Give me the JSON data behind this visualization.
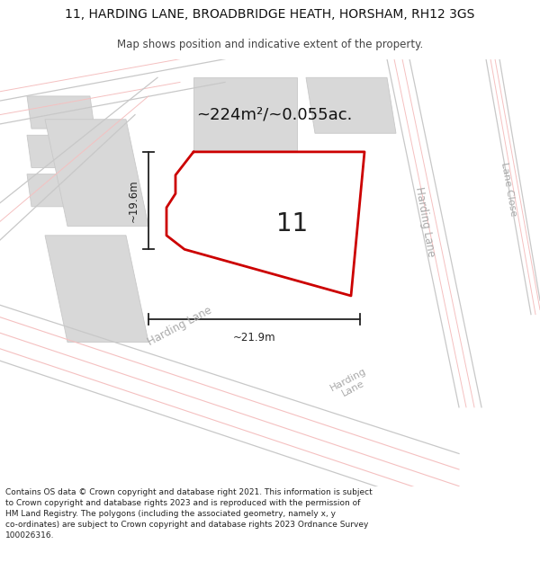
{
  "title_line1": "11, HARDING LANE, BROADBRIDGE HEATH, HORSHAM, RH12 3GS",
  "title_line2": "Map shows position and indicative extent of the property.",
  "area_label": "~224m²/~0.055ac.",
  "plot_number": "11",
  "dim_width": "~21.9m",
  "dim_height": "~19.6m",
  "footer": "Contains OS data © Crown copyright and database right 2021. This information is subject\nto Crown copyright and database rights 2023 and is reproduced with the permission of\nHM Land Registry. The polygons (including the associated geometry, namely x, y\nco-ordinates) are subject to Crown copyright and database rights 2023 Ordnance Survey\n100026316.",
  "map_bg": "#ffffff",
  "road_pink": "#f5c0c0",
  "road_gray": "#c8c8c8",
  "block_gray": "#d8d8d8",
  "plot_color": "#cc0000",
  "dim_color": "#222222",
  "title_color": "#111111",
  "footer_color": "#222222",
  "road_label_color": "#aaaaaa"
}
